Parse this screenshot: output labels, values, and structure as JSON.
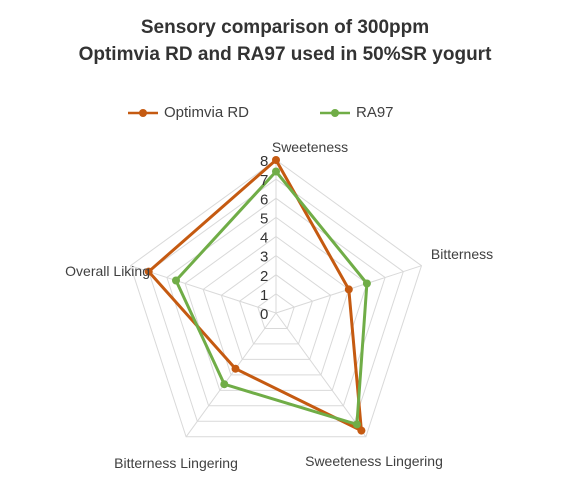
{
  "chart_data": {
    "type": "radar",
    "title_line1": "Sensory comparison of 300ppm",
    "title_line2": "Optimvia RD and RA97 used in 50%SR yogurt",
    "axes": [
      "Sweeteness",
      "Bitterness",
      "Sweeteness Lingering",
      "Bitterness Lingering",
      "Overall Liking"
    ],
    "ticks": [
      "0",
      "1",
      "2",
      "3",
      "4",
      "5",
      "6",
      "7",
      "8"
    ],
    "rlim": [
      0,
      8
    ],
    "grid": true,
    "legend_position": "top",
    "series": [
      {
        "name": "Optimvia RD",
        "color": "#c55a11",
        "values": [
          8.0,
          4.0,
          7.6,
          3.6,
          7.0
        ]
      },
      {
        "name": "RA97",
        "color": "#70ad47",
        "values": [
          7.4,
          5.0,
          7.2,
          4.6,
          5.5
        ]
      }
    ]
  }
}
